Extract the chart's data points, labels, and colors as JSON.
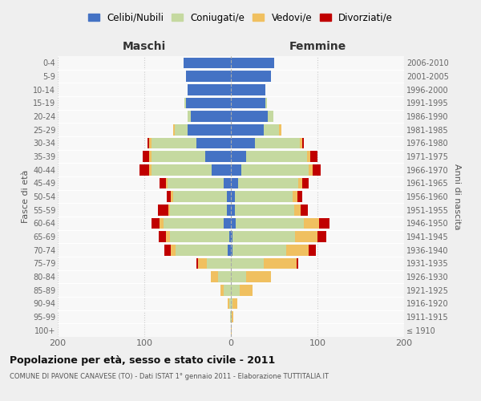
{
  "age_groups": [
    "100+",
    "95-99",
    "90-94",
    "85-89",
    "80-84",
    "75-79",
    "70-74",
    "65-69",
    "60-64",
    "55-59",
    "50-54",
    "45-49",
    "40-44",
    "35-39",
    "30-34",
    "25-29",
    "20-24",
    "15-19",
    "10-14",
    "5-9",
    "0-4"
  ],
  "birth_years": [
    "≤ 1910",
    "1911-1915",
    "1916-1920",
    "1921-1925",
    "1926-1930",
    "1931-1935",
    "1936-1940",
    "1941-1945",
    "1946-1950",
    "1951-1955",
    "1956-1960",
    "1961-1965",
    "1966-1970",
    "1971-1975",
    "1976-1980",
    "1981-1985",
    "1986-1990",
    "1991-1995",
    "1996-2000",
    "2001-2005",
    "2006-2010"
  ],
  "colors": {
    "celibi": "#4472C4",
    "coniugati": "#c5d9a0",
    "vedovi": "#f0c060",
    "divorziati": "#c00000",
    "fig_bg": "#efefef",
    "plot_bg": "#f8f8f8"
  },
  "maschi": {
    "celibi": [
      0,
      0,
      0,
      0,
      0,
      0,
      4,
      2,
      8,
      5,
      5,
      8,
      22,
      30,
      40,
      50,
      46,
      52,
      50,
      52,
      55
    ],
    "coniugati": [
      0,
      1,
      2,
      8,
      15,
      28,
      60,
      68,
      70,
      65,
      62,
      65,
      70,
      62,
      52,
      15,
      4,
      2,
      0,
      0,
      0
    ],
    "vedovi": [
      0,
      0,
      2,
      4,
      8,
      10,
      5,
      5,
      4,
      2,
      2,
      2,
      2,
      2,
      2,
      2,
      0,
      0,
      0,
      0,
      0
    ],
    "divorziati": [
      0,
      0,
      0,
      0,
      0,
      2,
      8,
      8,
      10,
      12,
      5,
      7,
      12,
      8,
      2,
      0,
      0,
      0,
      0,
      0,
      0
    ]
  },
  "femmine": {
    "celibi": [
      0,
      0,
      0,
      0,
      0,
      0,
      2,
      2,
      6,
      5,
      5,
      8,
      12,
      18,
      28,
      38,
      43,
      40,
      40,
      46,
      50
    ],
    "coniugati": [
      0,
      1,
      2,
      10,
      18,
      38,
      62,
      72,
      78,
      68,
      66,
      70,
      78,
      70,
      52,
      18,
      6,
      2,
      0,
      0,
      0
    ],
    "vedovi": [
      1,
      2,
      5,
      15,
      28,
      38,
      26,
      26,
      18,
      8,
      6,
      4,
      4,
      4,
      2,
      2,
      0,
      0,
      0,
      0,
      0
    ],
    "divorziati": [
      0,
      0,
      0,
      0,
      0,
      2,
      8,
      10,
      12,
      8,
      5,
      8,
      10,
      8,
      2,
      0,
      0,
      0,
      0,
      0,
      0
    ]
  },
  "xlim": 200,
  "title_main": "Popolazione per età, sesso e stato civile - 2011",
  "title_sub": "COMUNE DI PAVONE CANAVESE (TO) - Dati ISTAT 1° gennaio 2011 - Elaborazione TUTTITALIA.IT",
  "legend_labels": [
    "Celibi/Nubili",
    "Coniugati/e",
    "Vedovi/e",
    "Divorziati/e"
  ],
  "ylabel_left": "Fasce di età",
  "ylabel_right": "Anni di nascita",
  "label_maschi": "Maschi",
  "label_femmine": "Femmine"
}
